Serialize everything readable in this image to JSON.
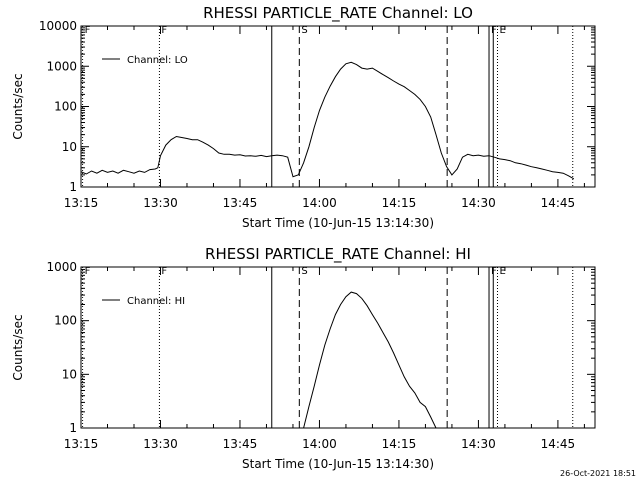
{
  "footer": {
    "date": "26-Oct-2021 18:51"
  },
  "chart_data": [
    {
      "type": "line",
      "title": "RHESSI PARTICLE_RATE Channel: LO",
      "xlabel": "Start Time (10-Jun-15 13:14:30)",
      "ylabel": "Counts/sec",
      "x_unit": "minutes after 13:15",
      "x_ticks": [
        "13:15",
        "13:30",
        "13:45",
        "14:00",
        "14:15",
        "14:30",
        "14:45"
      ],
      "xlim": [
        0,
        97
      ],
      "yscale": "log",
      "ylim": [
        1,
        10000
      ],
      "y_ticks": [
        "1",
        "10",
        "100",
        "1000",
        "10000"
      ],
      "legend": {
        "position": "top-left"
      },
      "markers": [
        {
          "x": 0.3,
          "style": "dotted",
          "label": "F"
        },
        {
          "x": 14.8,
          "style": "dotted",
          "label": "F"
        },
        {
          "x": 36.0,
          "style": "solid",
          "label": ""
        },
        {
          "x": 41.2,
          "style": "dashed",
          "label": "S"
        },
        {
          "x": 69.1,
          "style": "dashed",
          "label": ""
        },
        {
          "x": 77.0,
          "style": "solid",
          "label": "F"
        },
        {
          "x": 77.8,
          "style": "solid",
          "label": ""
        },
        {
          "x": 78.6,
          "style": "dotted",
          "label": "E"
        },
        {
          "x": 92.8,
          "style": "dotted",
          "label": ""
        }
      ],
      "series": [
        {
          "name": "Channel: LO",
          "x": [
            0,
            1,
            2,
            3,
            4,
            5,
            6,
            7,
            8,
            9,
            10,
            11,
            12,
            13,
            14,
            14.5,
            15,
            16,
            17,
            18,
            19,
            20,
            21,
            22,
            23,
            24,
            25,
            26,
            27,
            28,
            29,
            30,
            31,
            32,
            33,
            34,
            35,
            36,
            37,
            38,
            39,
            40,
            41,
            42,
            43,
            44,
            45,
            46,
            47,
            48,
            49,
            50,
            51,
            52,
            53,
            54,
            55,
            56,
            57,
            58,
            59,
            60,
            61,
            62,
            63,
            64,
            65,
            66,
            67,
            68,
            69,
            70,
            71,
            72,
            73,
            74,
            75,
            76,
            77,
            78,
            79,
            80,
            81,
            82,
            83,
            84,
            85,
            86,
            87,
            88,
            89,
            90,
            91,
            92,
            93
          ],
          "y": [
            2.4,
            2.1,
            2.5,
            2.2,
            2.6,
            2.3,
            2.5,
            2.2,
            2.6,
            2.4,
            2.2,
            2.5,
            2.3,
            2.7,
            2.8,
            3.0,
            6,
            11,
            15,
            18,
            17,
            16,
            15,
            15,
            13,
            11,
            9,
            7,
            6.5,
            6.5,
            6.2,
            6.3,
            5.9,
            6.0,
            5.8,
            6.1,
            5.7,
            6.0,
            6.2,
            6.0,
            5.5,
            1.8,
            2.0,
            4,
            10,
            30,
            80,
            170,
            320,
            550,
            850,
            1150,
            1250,
            1100,
            900,
            850,
            900,
            750,
            620,
            520,
            430,
            360,
            310,
            250,
            200,
            150,
            100,
            55,
            20,
            7,
            3.2,
            2.0,
            2.8,
            5.5,
            6.5,
            6.0,
            6.2,
            5.8,
            6.0,
            5.5,
            5.0,
            4.8,
            4.5,
            4.0,
            3.8,
            3.5,
            3.2,
            3.0,
            2.8,
            2.6,
            2.4,
            2.3,
            2.2,
            1.9,
            1.6
          ]
        }
      ]
    },
    {
      "type": "line",
      "title": "RHESSI PARTICLE_RATE Channel: HI",
      "xlabel": "Start Time (10-Jun-15 13:14:30)",
      "ylabel": "Counts/sec",
      "x_unit": "minutes after 13:15",
      "x_ticks": [
        "13:15",
        "13:30",
        "13:45",
        "14:00",
        "14:15",
        "14:30",
        "14:45"
      ],
      "xlim": [
        0,
        97
      ],
      "yscale": "log",
      "ylim": [
        1,
        1000
      ],
      "y_ticks": [
        "1",
        "10",
        "100",
        "1000"
      ],
      "legend": {
        "position": "top-left"
      },
      "markers": [
        {
          "x": 0.3,
          "style": "dotted",
          "label": "F"
        },
        {
          "x": 14.8,
          "style": "dotted",
          "label": "F"
        },
        {
          "x": 36.0,
          "style": "solid",
          "label": ""
        },
        {
          "x": 41.2,
          "style": "dashed",
          "label": "S"
        },
        {
          "x": 69.1,
          "style": "dashed",
          "label": ""
        },
        {
          "x": 77.0,
          "style": "solid",
          "label": "F"
        },
        {
          "x": 77.8,
          "style": "solid",
          "label": ""
        },
        {
          "x": 78.6,
          "style": "dotted",
          "label": "E"
        },
        {
          "x": 92.8,
          "style": "dotted",
          "label": ""
        }
      ],
      "series": [
        {
          "name": "Channel: HI",
          "x": [
            42,
            43,
            44,
            45,
            46,
            47,
            48,
            49,
            50,
            51,
            52,
            53,
            54,
            55,
            56,
            57,
            58,
            59,
            60,
            61,
            62,
            63,
            64,
            65,
            66,
            67
          ],
          "y": [
            1.0,
            2.5,
            6,
            15,
            35,
            70,
            130,
            200,
            280,
            340,
            320,
            260,
            190,
            130,
            90,
            60,
            40,
            25,
            15,
            9,
            6,
            4.5,
            3,
            2.5,
            1.6,
            1.0
          ]
        }
      ]
    }
  ]
}
